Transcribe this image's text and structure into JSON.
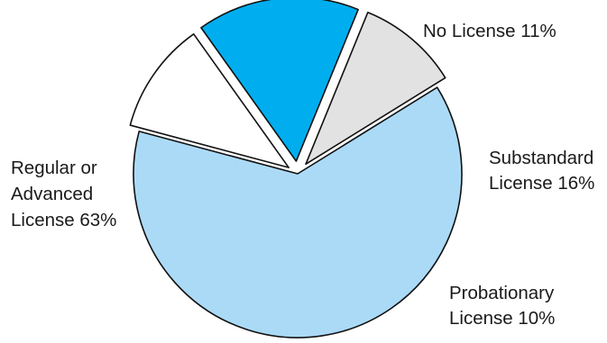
{
  "chart_data": {
    "type": "pie",
    "slices": [
      {
        "label_lines": [
          "No License 11%"
        ],
        "value": 11,
        "color": "#ffffff"
      },
      {
        "label_lines": [
          "Substandard",
          "License 16%"
        ],
        "value": 16,
        "color": "#00aeef"
      },
      {
        "label_lines": [
          "Probationary",
          "License 10%"
        ],
        "value": 10,
        "color": "#e2e2e2"
      },
      {
        "label_lines": [
          "Regular or",
          "Advanced",
          "License 63%"
        ],
        "value": 63,
        "color": "#abdaf7"
      }
    ],
    "legend": "none",
    "slice_labels": "outside, next to each slice"
  }
}
